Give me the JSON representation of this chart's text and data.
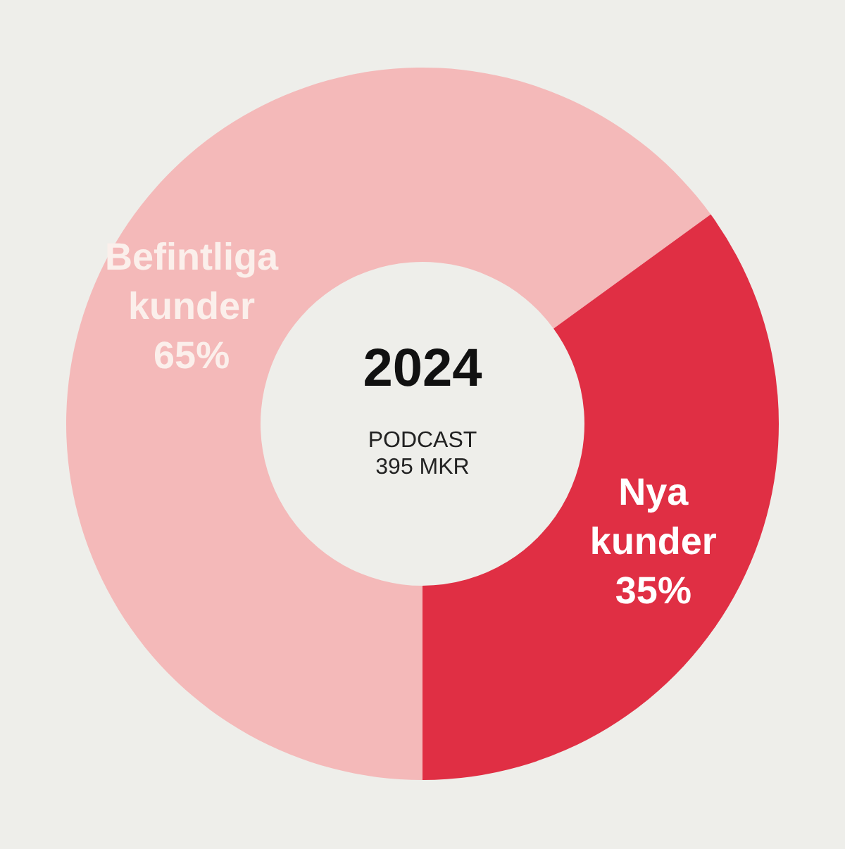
{
  "chart_data": {
    "type": "donut",
    "title": "2024",
    "subtitle": "PODCAST",
    "annotations": [
      "395 MKR"
    ],
    "categories": [
      "Befintliga kunder",
      "Nya kunder"
    ],
    "values": [
      65,
      35
    ],
    "colors": [
      "#f4b9b9",
      "#e02f44"
    ],
    "value_labels": [
      "65%",
      "35%"
    ]
  }
}
